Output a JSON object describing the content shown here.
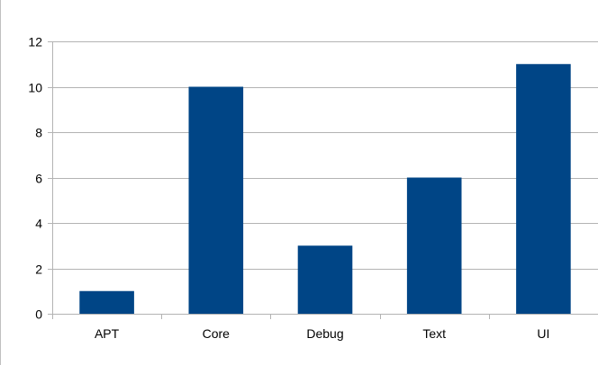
{
  "chart_data": {
    "type": "bar",
    "title": "",
    "xlabel": "",
    "ylabel": "",
    "categories": [
      "APT",
      "Core",
      "Debug",
      "Text",
      "UI"
    ],
    "values": [
      1,
      10,
      3,
      6,
      11
    ],
    "ylim": [
      0,
      12
    ],
    "yticks": [
      "0",
      "2",
      "4",
      "6",
      "8",
      "10",
      "12"
    ],
    "grid": true,
    "legend": "none"
  },
  "colors": {
    "bar": "#004586",
    "gridline": "#b3b3b3",
    "axis": "#b3b3b3",
    "text": "#000000",
    "frame": "#c0c0c0"
  }
}
